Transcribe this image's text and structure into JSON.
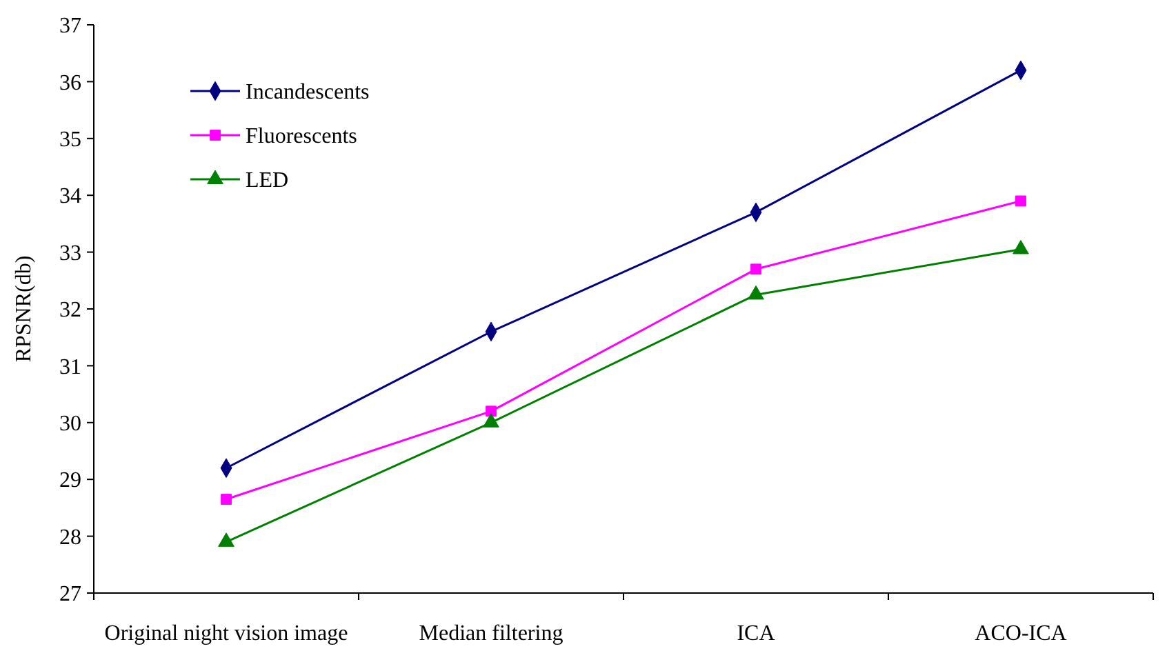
{
  "chart_data": {
    "type": "line",
    "ylabel": "RPSNR(db)",
    "categories": [
      "Original night vision image",
      "Median filtering",
      "ICA",
      "ACO-ICA"
    ],
    "ylim": [
      27,
      37
    ],
    "yticks": [
      27,
      28,
      29,
      30,
      31,
      32,
      33,
      34,
      35,
      36,
      37
    ],
    "grid": false,
    "legend": "top left",
    "series": [
      {
        "name": "Incandescents",
        "color": "#000080",
        "marker": "diamond",
        "values": [
          29.2,
          31.6,
          33.7,
          36.2
        ]
      },
      {
        "name": "Fluorescents",
        "color": "#ff00ff",
        "marker": "square",
        "values": [
          28.65,
          30.2,
          32.7,
          33.9
        ]
      },
      {
        "name": "LED",
        "color": "#008000",
        "marker": "triangle",
        "values": [
          27.9,
          30.0,
          32.25,
          33.05
        ]
      }
    ]
  }
}
